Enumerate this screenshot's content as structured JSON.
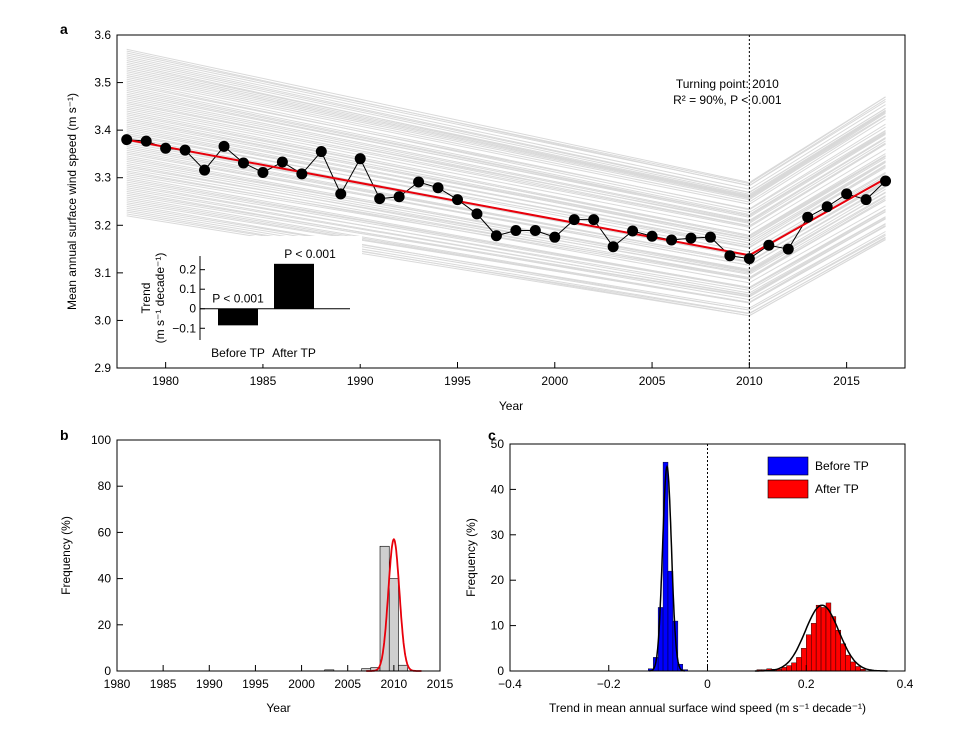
{
  "chart_data": [
    {
      "panel": "a",
      "type": "line",
      "xlabel": "Year",
      "ylabel": "Mean annual surface wind speed (m s⁻¹)",
      "xlim": [
        1977.5,
        2018
      ],
      "ylim": [
        2.9,
        3.6
      ],
      "xticks": [
        1980,
        1985,
        1990,
        1995,
        2000,
        2005,
        2010,
        2015
      ],
      "yticks": [
        "2.9",
        "3.0",
        "3.1",
        "3.2",
        "3.3",
        "3.4",
        "3.5",
        "3.6"
      ],
      "annotation_line1": "Turning point: 2010",
      "annotation_line2": "R² = 90%, P < 0.001",
      "turning_point": 2010,
      "observed": {
        "x": [
          1978,
          1979,
          1980,
          1981,
          1982,
          1983,
          1984,
          1985,
          1986,
          1987,
          1988,
          1989,
          1990,
          1991,
          1992,
          1993,
          1994,
          1995,
          1996,
          1997,
          1998,
          1999,
          2000,
          2001,
          2002,
          2003,
          2004,
          2005,
          2006,
          2007,
          2008,
          2009,
          2010,
          2011,
          2012,
          2013,
          2014,
          2015,
          2016,
          2017
        ],
        "y": [
          3.38,
          3.377,
          3.362,
          3.358,
          3.316,
          3.366,
          3.331,
          3.311,
          3.333,
          3.308,
          3.355,
          3.266,
          3.34,
          3.256,
          3.26,
          3.291,
          3.279,
          3.254,
          3.224,
          3.178,
          3.189,
          3.189,
          3.175,
          3.212,
          3.212,
          3.155,
          3.188,
          3.177,
          3.169,
          3.173,
          3.175,
          3.136,
          3.13,
          3.158,
          3.15,
          3.217,
          3.239,
          3.266,
          3.254,
          3.293
        ]
      },
      "fit": {
        "x": [
          1978,
          2010,
          2017
        ],
        "y": [
          3.38,
          3.137,
          3.298
        ]
      },
      "ensemble_band": {
        "start_year": 1978,
        "start_min": 3.22,
        "start_max": 3.57,
        "tp_year": 2010,
        "tp_min": 3.01,
        "tp_max": 3.29,
        "end_year": 2017,
        "end_min": 3.17,
        "end_max": 3.47
      },
      "colors": {
        "observed": "#000000",
        "fit": "#e8000b",
        "ensemble": "#d9d9d9"
      },
      "inset": {
        "type": "bar",
        "categories": [
          "Before TP",
          "After TP"
        ],
        "values": [
          -0.085,
          0.23
        ],
        "labels": [
          "P < 0.001",
          "P < 0.001"
        ],
        "ylabel_line1": "Trend",
        "ylabel_line2": "(m s⁻¹ decade⁻¹)",
        "ylim": [
          -0.16,
          0.27
        ],
        "yticks": [
          "−0.1",
          "0",
          "0.1",
          "0.2"
        ]
      }
    },
    {
      "panel": "b",
      "type": "bar",
      "xlabel": "Year",
      "ylabel": "Frequency (%)",
      "xlim": [
        1980,
        2015
      ],
      "ylim": [
        0,
        100
      ],
      "xticks": [
        1980,
        1985,
        1990,
        1995,
        2000,
        2005,
        2010,
        2015
      ],
      "yticks": [
        0,
        20,
        40,
        60,
        80,
        100
      ],
      "bins": {
        "x": [
          2003,
          2007,
          2008,
          2009,
          2010,
          2011
        ],
        "values": [
          0.5,
          1.0,
          1.5,
          54,
          40,
          2.5
        ]
      },
      "fit_peak": {
        "mean": 2010.0,
        "sd": 0.6,
        "peak": 57
      },
      "colors": {
        "bars": "#cfcfcf",
        "fit": "#e8000b"
      }
    },
    {
      "panel": "c",
      "type": "bar",
      "xlabel": "Trend in mean annual surface wind speed (m s⁻¹ decade⁻¹)",
      "ylabel": "Frequency (%)",
      "xlim": [
        -0.4,
        0.4
      ],
      "ylim": [
        0,
        50
      ],
      "xticks": [
        "−0.4",
        "−0.2",
        "0",
        "0.2",
        "0.4"
      ],
      "yticks": [
        0,
        10,
        20,
        30,
        40,
        50
      ],
      "series": [
        {
          "name": "Before TP",
          "color": "#0000ff",
          "bin_width": 0.01,
          "bin_start": [
            -0.12,
            -0.11,
            -0.1,
            -0.09,
            -0.08,
            -0.07,
            -0.06,
            -0.05
          ],
          "values": [
            0.5,
            3.0,
            14,
            46,
            22,
            11,
            1.5,
            0.3
          ]
        },
        {
          "name": "After TP",
          "color": "#ff0000",
          "bin_width": 0.01,
          "bin_start": [
            0.1,
            0.11,
            0.12,
            0.13,
            0.14,
            0.15,
            0.16,
            0.17,
            0.18,
            0.19,
            0.2,
            0.21,
            0.22,
            0.23,
            0.24,
            0.25,
            0.26,
            0.27,
            0.28,
            0.29,
            0.3,
            0.31
          ],
          "values": [
            0.3,
            0.3,
            0.5,
            0.4,
            0.4,
            0.8,
            1.2,
            1.8,
            3.0,
            5.0,
            8.0,
            10.5,
            14.5,
            14.0,
            15.0,
            12.0,
            9.0,
            6.0,
            3.5,
            2.0,
            1.0,
            0.4
          ]
        }
      ],
      "fits": [
        {
          "mean": -0.082,
          "sd": 0.009,
          "peak": 45
        },
        {
          "mean": 0.232,
          "sd": 0.034,
          "peak": 14.5
        }
      ]
    }
  ],
  "panel_labels": {
    "a": "a",
    "b": "b",
    "c": "c"
  }
}
